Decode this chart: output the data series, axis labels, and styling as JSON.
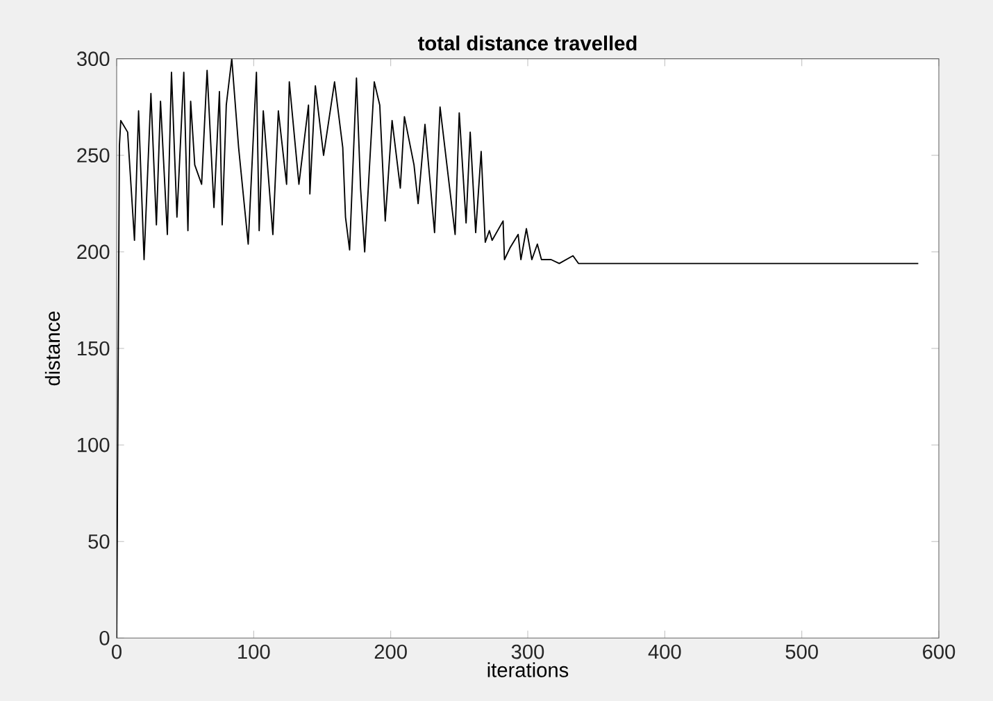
{
  "chart_data": {
    "type": "line",
    "title": "total distance travelled",
    "xlabel": "iterations",
    "ylabel": "distance",
    "xlim": [
      0,
      600
    ],
    "ylim": [
      0,
      300
    ],
    "xticks": [
      0,
      100,
      200,
      300,
      400,
      500,
      600
    ],
    "yticks": [
      0,
      50,
      100,
      150,
      200,
      250,
      300
    ],
    "grid": false,
    "marker": "none",
    "line_style": "solid",
    "series": [
      {
        "color": "#000000",
        "x": [
          0,
          2,
          3,
          8,
          13,
          16,
          20,
          25,
          29,
          32,
          37,
          40,
          44,
          49,
          52,
          54,
          57,
          62,
          66,
          71,
          75,
          77,
          80,
          84,
          89,
          96,
          102,
          104,
          107,
          114,
          118,
          124,
          126,
          133,
          140,
          141,
          145,
          151,
          159,
          165,
          167,
          170,
          175,
          178,
          181,
          188,
          192,
          196,
          201,
          207,
          210,
          217,
          220,
          225,
          232,
          236,
          247,
          250,
          255,
          258,
          262,
          266,
          269,
          272,
          274,
          282,
          283,
          287,
          293,
          295,
          299,
          303,
          307,
          310,
          317,
          323,
          333,
          337,
          345,
          585
        ],
        "values": [
          0,
          255,
          268,
          262,
          206,
          273,
          196,
          282,
          214,
          278,
          209,
          293,
          218,
          293,
          211,
          278,
          245,
          235,
          294,
          223,
          283,
          214,
          276,
          300,
          254,
          204,
          293,
          211,
          273,
          209,
          273,
          235,
          288,
          235,
          276,
          230,
          286,
          250,
          288,
          254,
          218,
          201,
          290,
          233,
          200,
          288,
          276,
          216,
          268,
          233,
          270,
          245,
          225,
          266,
          210,
          275,
          209,
          272,
          215,
          262,
          210,
          252,
          205,
          211,
          206,
          216,
          196,
          202,
          209,
          196,
          212,
          196,
          204,
          196,
          196,
          194,
          198,
          194,
          194,
          194
        ]
      }
    ]
  }
}
